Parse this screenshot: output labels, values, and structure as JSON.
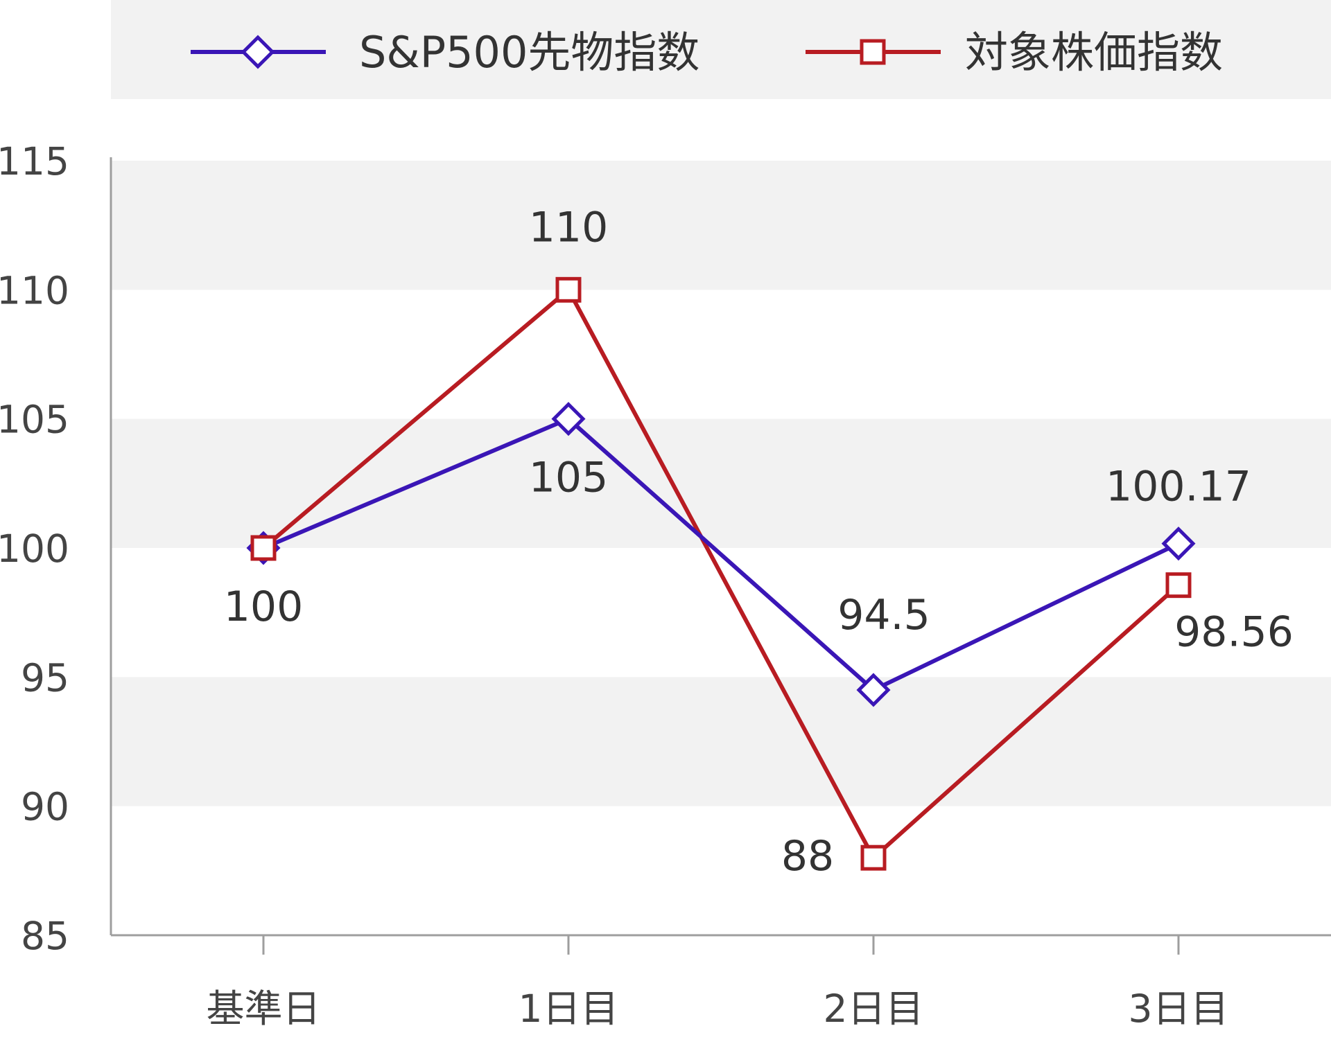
{
  "chart_data": {
    "type": "line",
    "categories": [
      "基準日",
      "1日目",
      "2日目",
      "3日目"
    ],
    "series": [
      {
        "name": "S&P500先物指数",
        "values": [
          100,
          105,
          94.5,
          100.17
        ],
        "labels": [
          "",
          "105",
          "94.5",
          "100.17"
        ],
        "color": "#3a16b6",
        "marker": "diamond"
      },
      {
        "name": "対象株価指数",
        "values": [
          100,
          110,
          88,
          98.56
        ],
        "labels": [
          "100",
          "110",
          "88",
          "98.56"
        ],
        "color": "#b81c22",
        "marker": "square"
      }
    ],
    "ylim": [
      85,
      115
    ],
    "yticks": [
      "85",
      "90",
      "95",
      "100",
      "105",
      "110",
      "115"
    ],
    "grid": "alternating-bands",
    "legend_position": "top",
    "title": "",
    "xlabel": "",
    "ylabel": ""
  }
}
